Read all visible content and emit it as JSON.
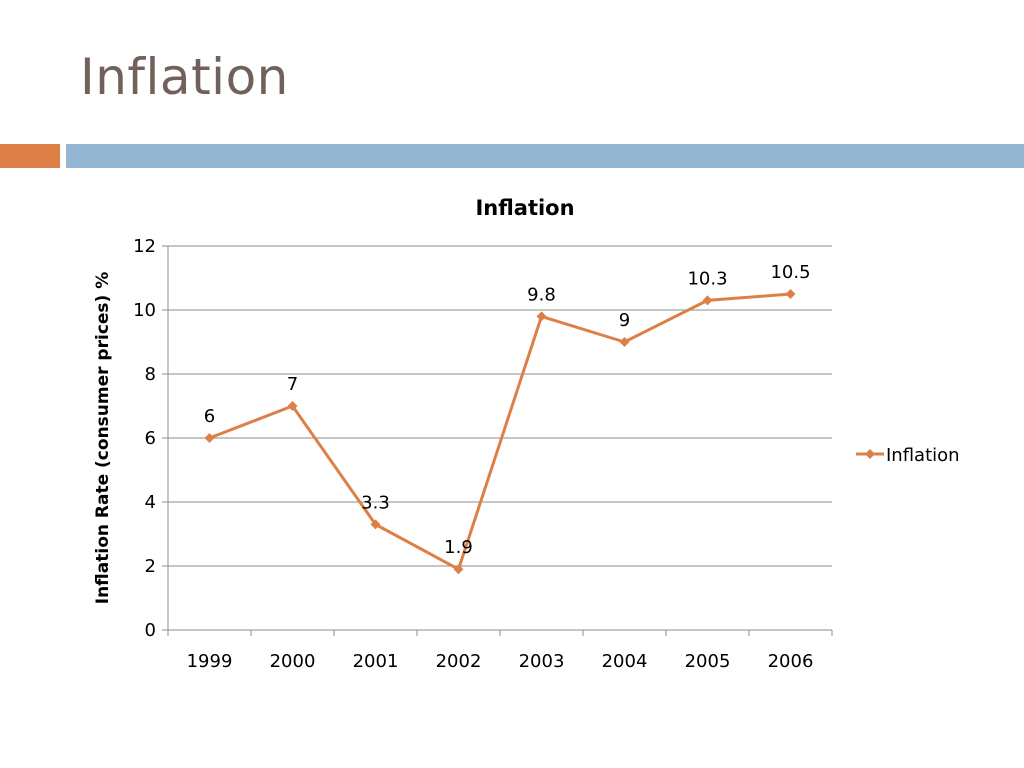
{
  "slide": {
    "title": "Inflation",
    "accent_colors": {
      "orange": "#dd8047",
      "blue": "#94b6d2"
    }
  },
  "chart_data": {
    "type": "line",
    "title": "Inflation",
    "xlabel": "",
    "ylabel": "Inflation Rate (consumer prices) %",
    "categories": [
      "1999",
      "2000",
      "2001",
      "2002",
      "2003",
      "2004",
      "2005",
      "2006"
    ],
    "series": [
      {
        "name": "Inflation",
        "values": [
          6,
          7,
          3.3,
          1.9,
          9.8,
          9,
          10.3,
          10.5
        ],
        "data_labels": [
          "6",
          "7",
          "3.3",
          "1.9",
          "9.8",
          "9",
          "10.3",
          "10.5"
        ],
        "color": "#dd8047",
        "marker": "diamond"
      }
    ],
    "ylim": [
      0,
      12
    ],
    "yticks": [
      0,
      2,
      4,
      6,
      8,
      10,
      12
    ],
    "grid": true,
    "legend_position": "right"
  }
}
